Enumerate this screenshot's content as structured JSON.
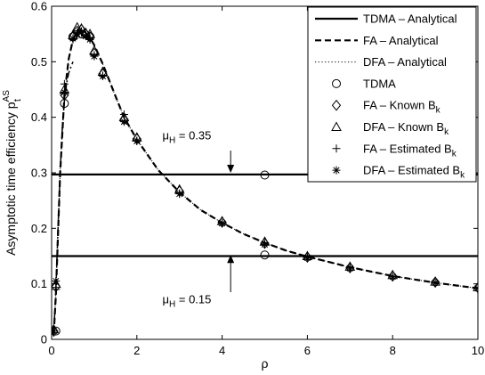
{
  "chart_data": {
    "type": "line",
    "xlabel": "ρ",
    "ylabel": "Asymptotic time efficiency p",
    "ylabel_sub": "t",
    "ylabel_sup": "AS",
    "xlim": [
      0,
      10
    ],
    "ylim": [
      0,
      0.6
    ],
    "xticks": [
      0,
      2,
      4,
      6,
      8,
      10
    ],
    "yticks": [
      0,
      0.1,
      0.2,
      0.3,
      0.4,
      0.5,
      0.6
    ],
    "ytick_labels": [
      "0",
      "0.1",
      "0.2",
      "0.3",
      "0.4",
      "0.5",
      "0.6"
    ],
    "grid": false,
    "legend_position": "top-right",
    "series": [
      {
        "name": "TDMA – Analytical",
        "style": "solid-line",
        "segments": [
          {
            "x": [
              0,
              10
            ],
            "y": [
              0.297,
              0.297
            ]
          },
          {
            "x": [
              0,
              10
            ],
            "y": [
              0.15,
              0.15
            ]
          }
        ]
      },
      {
        "name": "FA – Analytical",
        "style": "dashed-line",
        "x": [
          0.05,
          0.1,
          0.15,
          0.2,
          0.3,
          0.4,
          0.5,
          0.6,
          0.7,
          0.8,
          0.9,
          1.0,
          1.2,
          1.5,
          1.7,
          2,
          2.5,
          3,
          3.5,
          4,
          4.5,
          5,
          5.5,
          6,
          7,
          8,
          9,
          10
        ],
        "y": [
          0.01,
          0.08,
          0.19,
          0.3,
          0.44,
          0.505,
          0.54,
          0.555,
          0.556,
          0.552,
          0.543,
          0.53,
          0.496,
          0.438,
          0.4,
          0.36,
          0.305,
          0.265,
          0.233,
          0.21,
          0.19,
          0.174,
          0.16,
          0.149,
          0.13,
          0.114,
          0.102,
          0.092
        ]
      },
      {
        "name": "DFA – Analytical",
        "style": "dotted-line",
        "x": [
          0.05,
          0.1,
          0.15,
          0.2,
          0.3,
          0.4,
          0.5,
          0.6,
          0.7,
          0.8,
          0.9,
          1.0,
          1.2,
          1.5,
          1.7,
          2,
          2.5,
          3,
          3.5,
          4,
          4.5,
          5,
          5.5,
          6,
          7,
          8,
          9,
          10
        ],
        "y": [
          0.01,
          0.08,
          0.19,
          0.3,
          0.44,
          0.505,
          0.54,
          0.555,
          0.556,
          0.552,
          0.543,
          0.53,
          0.496,
          0.438,
          0.4,
          0.36,
          0.305,
          0.265,
          0.233,
          0.21,
          0.19,
          0.174,
          0.16,
          0.149,
          0.13,
          0.114,
          0.102,
          0.092
        ]
      },
      {
        "name": "TDMA",
        "marker": "circle",
        "x": [
          0.1,
          0.3,
          0.5,
          0.7,
          0.9,
          5,
          5
        ],
        "y": [
          0.015,
          0.425,
          0.545,
          0.55,
          0.545,
          0.296,
          0.152
        ]
      },
      {
        "name": "FA – Known B_k",
        "marker": "diamond",
        "x": [
          0.05,
          0.1,
          0.3,
          0.5,
          0.6,
          0.7,
          0.8,
          0.9,
          1.0,
          1.2,
          1.7,
          2,
          3,
          4,
          5,
          6,
          7,
          8,
          9,
          10
        ],
        "y": [
          0.015,
          0.095,
          0.44,
          0.545,
          0.555,
          0.558,
          0.55,
          0.545,
          0.515,
          0.478,
          0.396,
          0.361,
          0.267,
          0.211,
          0.173,
          0.148,
          0.129,
          0.114,
          0.103,
          0.093
        ]
      },
      {
        "name": "DFA – Known B_k",
        "marker": "triangle",
        "x": [
          0.05,
          0.1,
          0.3,
          0.5,
          0.6,
          0.7,
          0.8,
          0.9,
          1.0,
          1.2,
          1.7,
          2,
          3,
          4,
          5,
          6,
          7,
          8,
          9,
          10
        ],
        "y": [
          0.018,
          0.1,
          0.45,
          0.548,
          0.562,
          0.56,
          0.552,
          0.55,
          0.52,
          0.482,
          0.4,
          0.364,
          0.27,
          0.213,
          0.176,
          0.15,
          0.131,
          0.116,
          0.104,
          0.094
        ]
      },
      {
        "name": "FA – Estimated B_k",
        "marker": "plus",
        "x": [
          0.05,
          0.1,
          0.3,
          0.5,
          0.6,
          0.7,
          0.8,
          0.9,
          1.0,
          1.2,
          1.7,
          2,
          3,
          4,
          5,
          6,
          7,
          8,
          9,
          10
        ],
        "y": [
          0.012,
          0.09,
          0.46,
          0.54,
          0.552,
          0.555,
          0.548,
          0.542,
          0.512,
          0.475,
          0.405,
          0.358,
          0.263,
          0.21,
          0.172,
          0.148,
          0.129,
          0.113,
          0.102,
          0.092
        ]
      },
      {
        "name": "DFA – Estimated B_k",
        "marker": "asterisk",
        "x": [
          0.05,
          0.1,
          0.3,
          0.5,
          0.6,
          0.7,
          0.8,
          0.9,
          1.0,
          1.2,
          1.7,
          2,
          3,
          4,
          5,
          6,
          7,
          8,
          9,
          10
        ],
        "y": [
          0.015,
          0.105,
          0.445,
          0.542,
          0.55,
          0.553,
          0.546,
          0.54,
          0.51,
          0.474,
          0.392,
          0.357,
          0.262,
          0.209,
          0.171,
          0.147,
          0.128,
          0.113,
          0.102,
          0.092
        ]
      }
    ],
    "tdma_dashdot": {
      "x": [
        0.05,
        0.1,
        0.15,
        0.2,
        0.25,
        0.3,
        0.35,
        0.4,
        0.5
      ],
      "y": [
        0.01,
        0.09,
        0.2,
        0.3,
        0.38,
        0.43,
        0.46,
        0.48,
        0.5
      ]
    },
    "legend": [
      {
        "label": "TDMA – Analytical",
        "style": "solid-line"
      },
      {
        "label": "FA – Analytical",
        "style": "dashed-line"
      },
      {
        "label": "DFA – Analytical",
        "style": "dotted-line"
      },
      {
        "label": "TDMA",
        "style": "circle"
      },
      {
        "label": "FA – Known B",
        "sub": "k",
        "style": "diamond"
      },
      {
        "label": "DFA – Known B",
        "sub": "k",
        "style": "triangle"
      },
      {
        "label": "FA – Estimated B",
        "sub": "k",
        "style": "plus"
      },
      {
        "label": "DFA – Estimated B",
        "sub": "k",
        "style": "asterisk"
      }
    ],
    "annotations": [
      {
        "text_main": "μ",
        "text_sub": "H",
        "text_rest": " = 0.35",
        "arrow_x": 4.2,
        "arrow_y_from": 0.34,
        "arrow_y_to": 0.3,
        "text_x": 2.6,
        "text_y": 0.36
      },
      {
        "text_main": "μ",
        "text_sub": "H",
        "text_rest": " = 0.15",
        "arrow_x": 4.2,
        "arrow_y_from": 0.085,
        "arrow_y_to": 0.152,
        "text_x": 2.6,
        "text_y": 0.065
      }
    ]
  }
}
